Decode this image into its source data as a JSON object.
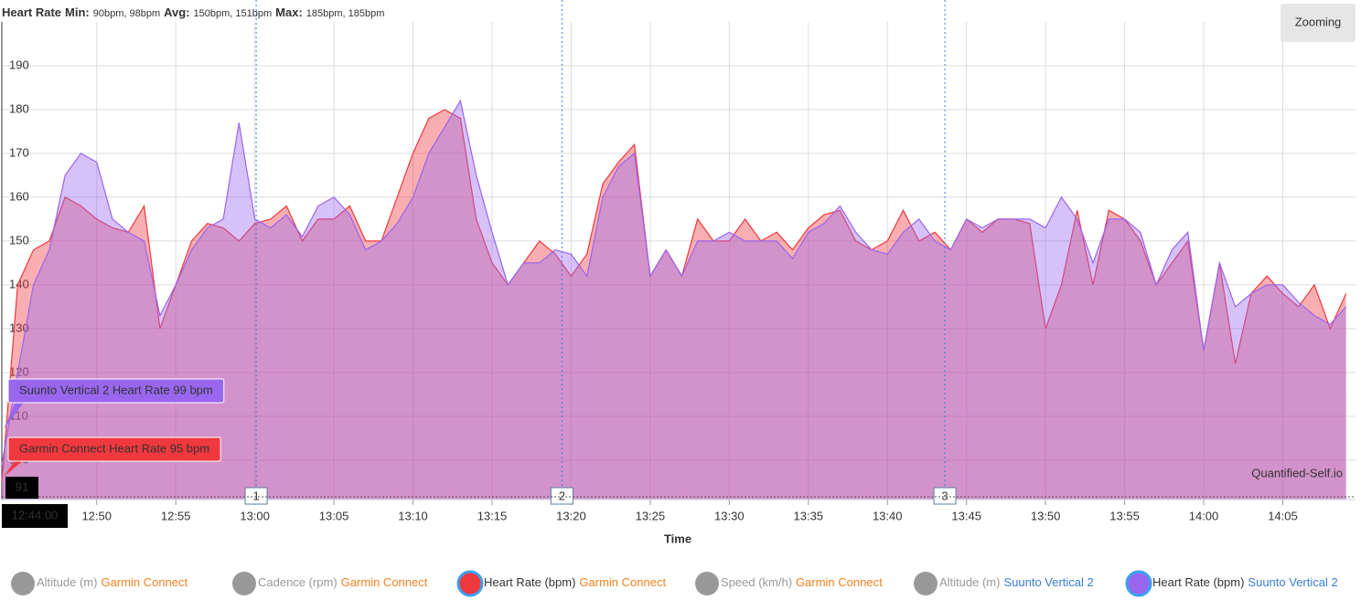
{
  "chart_data": {
    "type": "area",
    "title": "Heart Rate",
    "stats": [
      {
        "label": "Min:",
        "text": "90bpm, 98bpm"
      },
      {
        "label": "Avg:",
        "text": "150bpm, 151bpm"
      },
      {
        "label": "Max:",
        "text": "185bpm, 185bpm"
      }
    ],
    "x_label": "Time",
    "x": [
      "12:44:00",
      "12:45:00",
      "12:46:00",
      "12:47:00",
      "12:48:00",
      "12:49:00",
      "12:50:00",
      "12:51:00",
      "12:52:00",
      "12:53:00",
      "12:54:00",
      "12:55:00",
      "12:56:00",
      "12:57:00",
      "12:58:00",
      "12:59:00",
      "13:00:00",
      "13:01:00",
      "13:02:00",
      "13:03:00",
      "13:04:00",
      "13:05:00",
      "13:06:00",
      "13:07:00",
      "13:08:00",
      "13:09:00",
      "13:10:00",
      "13:11:00",
      "13:12:00",
      "13:13:00",
      "13:14:00",
      "13:15:00",
      "13:16:00",
      "13:17:00",
      "13:18:00",
      "13:19:00",
      "13:20:00",
      "13:21:00",
      "13:22:00",
      "13:23:00",
      "13:24:00",
      "13:25:00",
      "13:26:00",
      "13:27:00",
      "13:28:00",
      "13:29:00",
      "13:30:00",
      "13:31:00",
      "13:32:00",
      "13:33:00",
      "13:34:00",
      "13:35:00",
      "13:36:00",
      "13:37:00",
      "13:38:00",
      "13:39:00",
      "13:40:00",
      "13:41:00",
      "13:42:00",
      "13:43:00",
      "13:44:00",
      "13:45:00",
      "13:46:00",
      "13:47:00",
      "13:48:00",
      "13:49:00",
      "13:50:00",
      "13:51:00",
      "13:52:00",
      "13:53:00",
      "13:54:00",
      "13:55:00",
      "13:56:00",
      "13:57:00",
      "13:58:00",
      "13:59:00",
      "14:00:00",
      "14:01:00",
      "14:02:00",
      "14:03:00",
      "14:04:00",
      "14:05:00",
      "14:06:00",
      "14:07:00",
      "14:08:00",
      "14:09:00"
    ],
    "series": [
      {
        "color": "#f0383f",
        "values": [
          95,
          140,
          148,
          150,
          160,
          158,
          155,
          153,
          152,
          158,
          130,
          140,
          150,
          154,
          153,
          150,
          154,
          155,
          158,
          150,
          155,
          155,
          158,
          150,
          150,
          160,
          170,
          178,
          180,
          178,
          155,
          145,
          140,
          145,
          150,
          147,
          142,
          147,
          163,
          168,
          172,
          142,
          148,
          142,
          155,
          150,
          150,
          155,
          150,
          152,
          148,
          153,
          156,
          157,
          150,
          148,
          150,
          157,
          150,
          152,
          148,
          155,
          152,
          155,
          155,
          154,
          130,
          140,
          157,
          140,
          157,
          155,
          150,
          140,
          145,
          150,
          125,
          145,
          122,
          138,
          142,
          138,
          135,
          140,
          130,
          138
        ]
      },
      {
        "color": "#9966ee",
        "values": [
          99,
          120,
          140,
          148,
          165,
          170,
          168,
          155,
          152,
          150,
          133,
          140,
          148,
          153,
          155,
          177,
          155,
          153,
          156,
          151,
          158,
          160,
          156,
          148,
          150,
          154,
          160,
          170,
          176,
          182,
          165,
          152,
          140,
          145,
          145,
          148,
          147,
          142,
          160,
          167,
          170,
          142,
          148,
          142,
          150,
          150,
          152,
          150,
          150,
          150,
          146,
          152,
          154,
          158,
          152,
          148,
          147,
          152,
          155,
          150,
          148,
          155,
          153,
          155,
          155,
          155,
          153,
          160,
          155,
          145,
          155,
          155,
          152,
          140,
          148,
          152,
          125,
          145,
          135,
          138,
          140,
          140,
          136,
          133,
          131,
          135
        ]
      }
    ],
    "xlim": [
      "12:44:00",
      "14:09:36"
    ],
    "xticks": [
      {
        "value": "12:50:00",
        "label": "12:50"
      },
      {
        "value": "12:55:00",
        "label": "12:55"
      },
      {
        "value": "13:00:00",
        "label": "13:00"
      },
      {
        "value": "13:05:00",
        "label": "13:05"
      },
      {
        "value": "13:10:00",
        "label": "13:10"
      },
      {
        "value": "13:15:00",
        "label": "13:15"
      },
      {
        "value": "13:20:00",
        "label": "13:20"
      },
      {
        "value": "13:25:00",
        "label": "13:25"
      },
      {
        "value": "13:30:00",
        "label": "13:30"
      },
      {
        "value": "13:35:00",
        "label": "13:35"
      },
      {
        "value": "13:40:00",
        "label": "13:40"
      },
      {
        "value": "13:45:00",
        "label": "13:45"
      },
      {
        "value": "13:50:00",
        "label": "13:50"
      },
      {
        "value": "13:55:00",
        "label": "13:55"
      },
      {
        "value": "14:00:00",
        "label": "14:00"
      },
      {
        "value": "14:05:00",
        "label": "14:05"
      }
    ],
    "ylim": [
      91,
      200
    ],
    "yticks": [
      100,
      110,
      120,
      130,
      140,
      150,
      160,
      170,
      180,
      190
    ],
    "grid": true,
    "laps": [
      {
        "label": "1",
        "time": "13:00:05"
      },
      {
        "label": "2",
        "time": "13:19:25"
      },
      {
        "label": "3",
        "time": "13:43:38"
      }
    ],
    "tooltips": [
      {
        "text": "Suunto Vertical 2 Heart Rate 99 bpm",
        "color": "#9966ee"
      },
      {
        "text": "Garmin Connect Heart Rate 95 bpm",
        "color": "#f0383f"
      }
    ],
    "crosshair": {
      "y": "91",
      "x": "12:44:00"
    },
    "watermark": "Quantified-Self.io",
    "zoom_button": "Zooming",
    "legend": [
      {
        "label": "Altitude (m)",
        "source": "Garmin Connect",
        "color": "#999999",
        "active": false
      },
      {
        "label": "Cadence (rpm)",
        "source": "Garmin Connect",
        "color": "#999999",
        "active": false
      },
      {
        "label": "Heart Rate (bpm)",
        "source": "Garmin Connect",
        "color": "#f0383f",
        "active": true
      },
      {
        "label": "Speed (km/h)",
        "source": "Garmin Connect",
        "color": "#999999",
        "active": false
      },
      {
        "label": "Altitude (m)",
        "source": "Suunto Vertical 2",
        "color": "#999999",
        "active": false
      },
      {
        "label": "Heart Rate (bpm)",
        "source": "Suunto Vertical 2",
        "color": "#9966ee",
        "active": true
      }
    ]
  }
}
